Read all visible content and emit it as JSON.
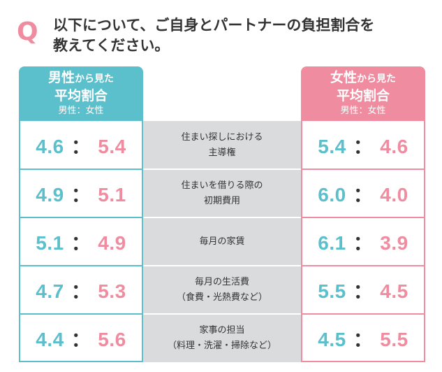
{
  "question": {
    "mark": "Q",
    "line1": "以下について、ご自身とパートナーの負担割合を",
    "line2": "教えてください。"
  },
  "left_header": {
    "title_main": "男性",
    "title_small": "から見た",
    "line2": "平均割合",
    "line3": "男性：女性"
  },
  "right_header": {
    "title_main": "女性",
    "title_small": "から見た",
    "line2": "平均割合",
    "line3": "男性：女性"
  },
  "colon": "：",
  "rows": [
    {
      "label_line1": "住まい探しにおける",
      "label_line2": "主導権",
      "left": {
        "male": "4.6",
        "female": "5.4"
      },
      "right": {
        "male": "5.4",
        "female": "4.6"
      }
    },
    {
      "label_line1": "住まいを借りる際の",
      "label_line2": "初期費用",
      "left": {
        "male": "4.9",
        "female": "5.1"
      },
      "right": {
        "male": "6.0",
        "female": "4.0"
      }
    },
    {
      "label_line1": "毎月の家賃",
      "label_line2": "",
      "left": {
        "male": "5.1",
        "female": "4.9"
      },
      "right": {
        "male": "6.1",
        "female": "3.9"
      }
    },
    {
      "label_line1": "毎月の生活費",
      "label_line2": "（食費・光熱費など）",
      "left": {
        "male": "4.7",
        "female": "5.3"
      },
      "right": {
        "male": "5.5",
        "female": "4.5"
      }
    },
    {
      "label_line1": "家事の担当",
      "label_line2": "（料理・洗濯・掃除など）",
      "left": {
        "male": "4.4",
        "female": "5.6"
      },
      "right": {
        "male": "4.5",
        "female": "5.5"
      }
    }
  ],
  "colors": {
    "male": "#5bbfcc",
    "female": "#f08ca0",
    "middle_bg": "#dadbdd",
    "text": "#333333"
  }
}
